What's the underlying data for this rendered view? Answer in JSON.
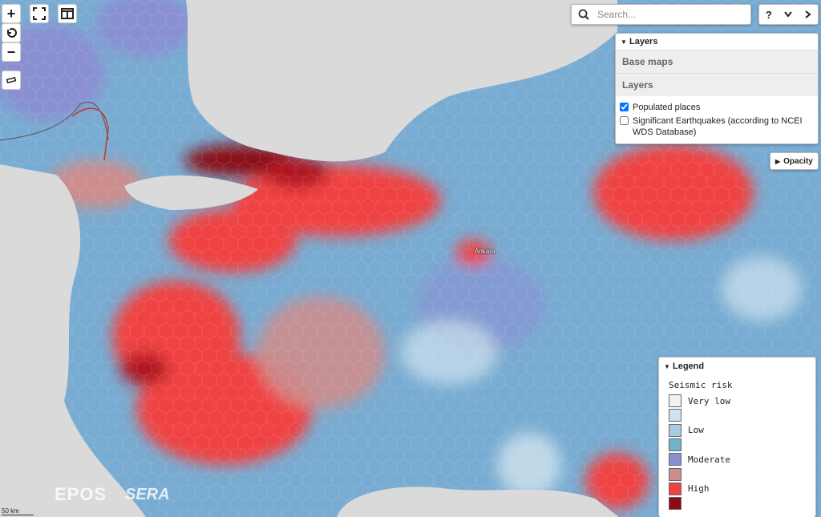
{
  "controls": {
    "zoom_in": "+",
    "zoom_out": "−",
    "search_placeholder": "Search...",
    "help": "?"
  },
  "layers_panel": {
    "title": "Layers",
    "sections": [
      "Base maps",
      "Layers"
    ],
    "items": [
      {
        "label": "Populated places",
        "checked": true
      },
      {
        "label": "Significant Earthquakes (according to NCEI WDS Database)",
        "checked": false
      }
    ]
  },
  "opacity": "Opacity",
  "map": {
    "city": "Ankara",
    "logos": [
      "EPOS",
      "SERA"
    ],
    "scale": "50 km"
  },
  "legend": {
    "title": "Legend",
    "subtitle": "Seismic risk",
    "items": [
      {
        "color": "#f2f2f2",
        "label": "Very low"
      },
      {
        "color": "#cfe3ee"
      },
      {
        "color": "#a7cbe2",
        "label": "Low"
      },
      {
        "color": "#72b4cc"
      },
      {
        "color": "#8a8fd2",
        "label": "Moderate"
      },
      {
        "color": "#cc8d8d"
      },
      {
        "color": "#f04343",
        "label": "High"
      },
      {
        "color": "#8b0b16"
      }
    ]
  }
}
